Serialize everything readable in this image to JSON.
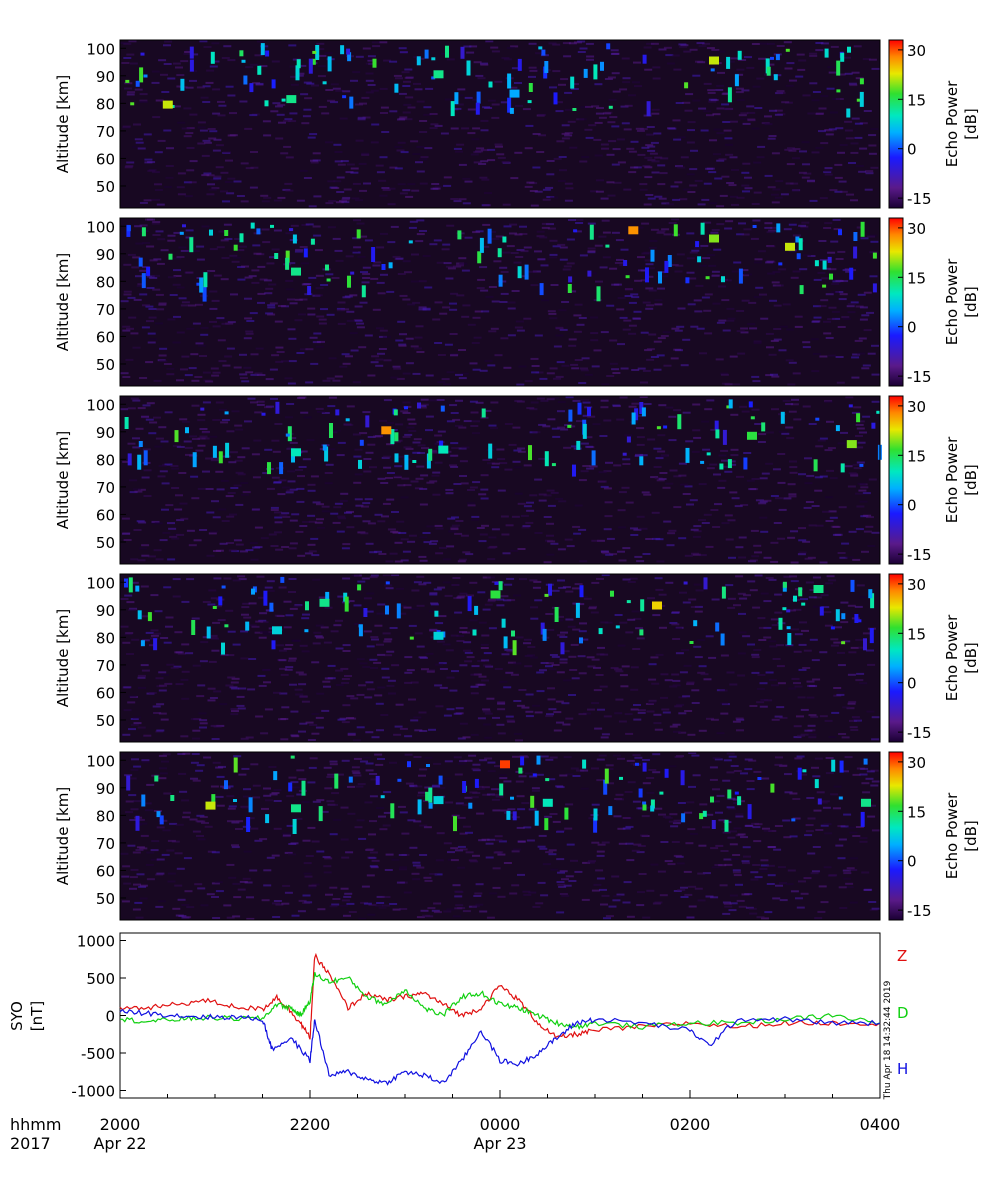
{
  "colorbar": {
    "label_line1": "Echo Power",
    "label_line2": "[dB]",
    "ticks": [
      "30",
      "15",
      "0",
      "-15"
    ],
    "tick_values": [
      30,
      15,
      0,
      -15
    ],
    "range": [
      -18,
      33
    ]
  },
  "panels": [
    {
      "ylabel": "Altitude [km]"
    },
    {
      "ylabel": "Altitude [km]"
    },
    {
      "ylabel": "Altitude [km]"
    },
    {
      "ylabel": "Altitude [km]"
    },
    {
      "ylabel": "Altitude [km]"
    }
  ],
  "altitude_axis": {
    "ticks": [
      "100",
      "90",
      "80",
      "70",
      "60",
      "50"
    ],
    "tick_values": [
      100,
      90,
      80,
      70,
      60,
      50
    ],
    "range": [
      42,
      103
    ]
  },
  "mag": {
    "ylabel_line1": "SYO",
    "ylabel_line2": "[nT]",
    "yticks": [
      "1000",
      "500",
      "0",
      "-500",
      "-1000"
    ],
    "ytick_values": [
      1000,
      500,
      0,
      -500,
      -1000
    ],
    "ylim": [
      -1100,
      1100
    ],
    "timestamp": "Thu Apr 18 14:32:44 2019",
    "legend": [
      {
        "name": "Z",
        "color": "#e01010"
      },
      {
        "name": "D",
        "color": "#10d010"
      },
      {
        "name": "H",
        "color": "#1010e0"
      }
    ]
  },
  "time_axis": {
    "row1_left": "hhmm",
    "row2_left": "2017",
    "ticks": [
      "2000",
      "2200",
      "0000",
      "0200",
      "0400"
    ],
    "tick_hours": [
      0,
      2,
      4,
      6,
      8
    ],
    "dates": [
      {
        "label": "Apr 22",
        "hour": 0
      },
      {
        "label": "Apr 23",
        "hour": 4
      }
    ],
    "range_hours": [
      0,
      8
    ]
  },
  "chart_data": [
    {
      "type": "heatmap",
      "description_of_axes": "x = time (UT hours after 2000 Apr 22), y = altitude km, color = echo power dB",
      "xlabel": "",
      "ylabel": "Altitude [km]",
      "colorbar_label": "Echo Power [dB]",
      "xlim_hours": [
        0,
        8
      ],
      "ylim": [
        42,
        103
      ],
      "zlim": [
        -15,
        30
      ],
      "features": [
        {
          "x": 0.45,
          "y": 79,
          "z": 20
        },
        {
          "x": 1.75,
          "y": 81,
          "z": 12
        },
        {
          "x": 3.3,
          "y": 90,
          "z": 12
        },
        {
          "x": 6.2,
          "y": 95,
          "z": 20
        },
        {
          "x": 4.1,
          "y": 83,
          "z": 5
        }
      ]
    },
    {
      "type": "heatmap",
      "xlabel": "",
      "ylabel": "Altitude [km]",
      "colorbar_label": "Echo Power [dB]",
      "xlim_hours": [
        0,
        8
      ],
      "ylim": [
        42,
        103
      ],
      "zlim": [
        -15,
        30
      ],
      "features": [
        {
          "x": 1.8,
          "y": 83,
          "z": 12
        },
        {
          "x": 5.35,
          "y": 98,
          "z": 25
        },
        {
          "x": 6.2,
          "y": 95,
          "z": 18
        },
        {
          "x": 7.0,
          "y": 92,
          "z": 20
        }
      ]
    },
    {
      "type": "heatmap",
      "xlabel": "",
      "ylabel": "Altitude [km]",
      "colorbar_label": "Echo Power [dB]",
      "xlim_hours": [
        0,
        8
      ],
      "ylim": [
        42,
        103
      ],
      "zlim": [
        -15,
        30
      ],
      "features": [
        {
          "x": 1.8,
          "y": 82,
          "z": 10
        },
        {
          "x": 2.75,
          "y": 90,
          "z": 25
        },
        {
          "x": 3.35,
          "y": 83,
          "z": 10
        },
        {
          "x": 6.6,
          "y": 88,
          "z": 15
        },
        {
          "x": 7.65,
          "y": 85,
          "z": 18
        }
      ]
    },
    {
      "type": "heatmap",
      "xlabel": "",
      "ylabel": "Altitude [km]",
      "colorbar_label": "Echo Power [dB]",
      "xlim_hours": [
        0,
        8
      ],
      "ylim": [
        42,
        103
      ],
      "zlim": [
        -15,
        30
      ],
      "features": [
        {
          "x": 1.6,
          "y": 82,
          "z": 8
        },
        {
          "x": 2.1,
          "y": 92,
          "z": 12
        },
        {
          "x": 3.3,
          "y": 80,
          "z": 8
        },
        {
          "x": 3.9,
          "y": 95,
          "z": 15
        },
        {
          "x": 5.6,
          "y": 91,
          "z": 22
        },
        {
          "x": 7.3,
          "y": 97,
          "z": 12
        }
      ]
    },
    {
      "type": "heatmap",
      "xlabel": "",
      "ylabel": "Altitude [km]",
      "colorbar_label": "Echo Power [dB]",
      "xlim_hours": [
        0,
        8
      ],
      "ylim": [
        42,
        103
      ],
      "zlim": [
        -15,
        30
      ],
      "features": [
        {
          "x": 0.9,
          "y": 83,
          "z": 20
        },
        {
          "x": 1.8,
          "y": 82,
          "z": 12
        },
        {
          "x": 3.3,
          "y": 85,
          "z": 8
        },
        {
          "x": 4.0,
          "y": 98,
          "z": 28
        },
        {
          "x": 4.45,
          "y": 84,
          "z": 10
        },
        {
          "x": 7.8,
          "y": 84,
          "z": 12
        }
      ]
    },
    {
      "type": "line",
      "ylabel": "SYO [nT]",
      "xlim_hours": [
        0,
        8
      ],
      "ylim": [
        -1100,
        1100
      ],
      "series": [
        {
          "name": "Z",
          "color": "#e01010",
          "x": [
            0,
            0.3,
            0.6,
            0.9,
            1.2,
            1.5,
            1.65,
            1.8,
            1.9,
            2.0,
            2.05,
            2.2,
            2.4,
            2.6,
            2.8,
            3.0,
            3.2,
            3.4,
            3.6,
            3.8,
            4.0,
            4.2,
            4.4,
            4.6,
            4.8,
            5.0,
            5.5,
            6.0,
            6.5,
            7.0,
            7.5,
            8.0
          ],
          "y": [
            100,
            100,
            150,
            200,
            120,
            80,
            250,
            50,
            -100,
            -300,
            800,
            550,
            100,
            300,
            200,
            250,
            300,
            150,
            0,
            100,
            400,
            200,
            -100,
            -300,
            -250,
            -200,
            -150,
            -100,
            -150,
            -100,
            -100,
            -100
          ]
        },
        {
          "name": "D",
          "color": "#10d010",
          "x": [
            0,
            0.3,
            0.6,
            0.9,
            1.2,
            1.5,
            1.65,
            1.8,
            1.9,
            2.0,
            2.05,
            2.2,
            2.4,
            2.6,
            2.8,
            3.0,
            3.2,
            3.4,
            3.6,
            3.8,
            4.0,
            4.2,
            4.4,
            4.6,
            4.8,
            5.0,
            5.5,
            6.0,
            6.5,
            7.0,
            7.5,
            8.0
          ],
          "y": [
            -50,
            -80,
            -50,
            -30,
            -40,
            -40,
            150,
            100,
            0,
            200,
            550,
            450,
            500,
            250,
            150,
            350,
            100,
            0,
            250,
            300,
            150,
            100,
            0,
            -100,
            -150,
            -100,
            -150,
            -100,
            -100,
            -50,
            0,
            -100
          ]
        },
        {
          "name": "H",
          "color": "#1010e0",
          "x": [
            0,
            0.3,
            0.6,
            0.9,
            1.2,
            1.5,
            1.6,
            1.8,
            2.0,
            2.05,
            2.2,
            2.4,
            2.6,
            2.8,
            3.0,
            3.2,
            3.4,
            3.6,
            3.8,
            4.0,
            4.2,
            4.4,
            4.6,
            4.8,
            5.0,
            5.5,
            6.0,
            6.2,
            6.5,
            7.0,
            7.5,
            8.0
          ],
          "y": [
            50,
            30,
            0,
            -20,
            -20,
            -50,
            -450,
            -300,
            -600,
            -50,
            -800,
            -750,
            -850,
            -900,
            -750,
            -800,
            -900,
            -600,
            -200,
            -600,
            -650,
            -500,
            -300,
            -100,
            -50,
            -100,
            -200,
            -400,
            -50,
            -50,
            -100,
            -100
          ]
        }
      ]
    }
  ]
}
